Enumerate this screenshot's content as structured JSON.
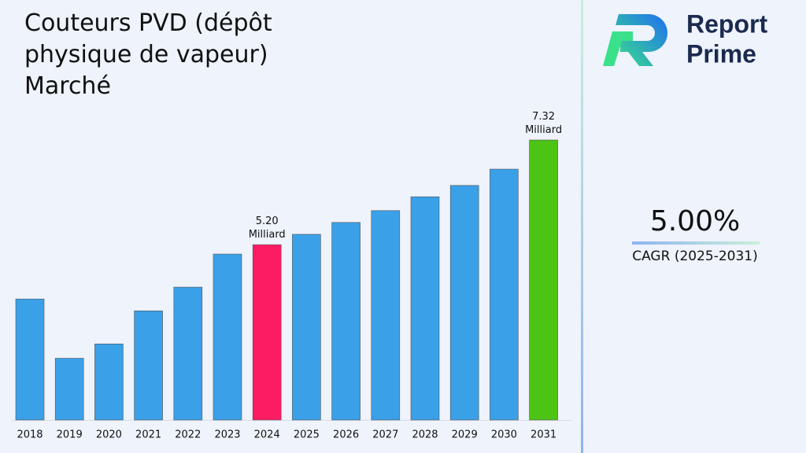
{
  "chart_data": {
    "type": "bar",
    "title": "Couteurs PVD (dépôt physique de vapeur) Marché",
    "categories": [
      "2018",
      "2019",
      "2020",
      "2021",
      "2022",
      "2023",
      "2024",
      "2025",
      "2026",
      "2027",
      "2028",
      "2029",
      "2030",
      "2031"
    ],
    "values": [
      4.1,
      2.9,
      3.19,
      3.86,
      4.34,
      5.01,
      5.2,
      5.41,
      5.65,
      5.89,
      6.17,
      6.4,
      6.73,
      7.32
    ],
    "value_labels": [
      null,
      null,
      null,
      null,
      null,
      null,
      "5.20 Milliard",
      null,
      null,
      null,
      null,
      null,
      null,
      "7.32 Milliard"
    ],
    "colors": [
      "#3aa0e8",
      "#3aa0e8",
      "#3aa0e8",
      "#3aa0e8",
      "#3aa0e8",
      "#3aa0e8",
      "#fc1c64",
      "#3aa0e8",
      "#3aa0e8",
      "#3aa0e8",
      "#3aa0e8",
      "#3aa0e8",
      "#3aa0e8",
      "#4cc414"
    ],
    "ylim": [
      1.65,
      7.32
    ]
  },
  "kpi": {
    "value": "5.00%",
    "label": "CAGR (2025-2031)"
  },
  "brand": [
    "Report",
    "Prime"
  ]
}
